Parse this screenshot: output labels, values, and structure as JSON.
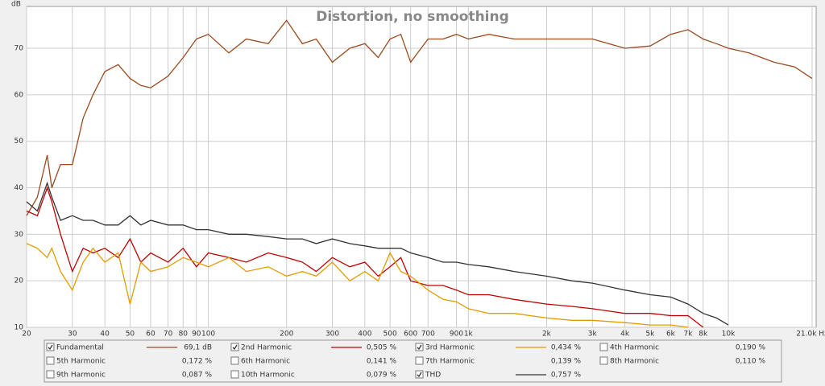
{
  "chart_data": {
    "type": "line",
    "title": "Distortion, no smoothing",
    "y_label": "dB",
    "log_x": true,
    "grid": true,
    "xlim": [
      20,
      21000
    ],
    "ylim": [
      10,
      79
    ],
    "xticks": [
      20,
      30,
      40,
      50,
      60,
      70,
      80,
      90,
      100,
      200,
      300,
      400,
      500,
      600,
      700,
      900,
      {
        "value": 1000,
        "label": "1k"
      },
      {
        "value": 2000,
        "label": "2k"
      },
      {
        "value": 3000,
        "label": "3k"
      },
      {
        "value": 4000,
        "label": "4k"
      },
      {
        "value": 5000,
        "label": "5k"
      },
      {
        "value": 6000,
        "label": "6k"
      },
      {
        "value": 7000,
        "label": "7k"
      },
      {
        "value": 8000,
        "label": "8k"
      },
      {
        "value": 10000,
        "label": "10k"
      },
      {
        "value": 21000,
        "label": "21.0k Hz"
      }
    ],
    "yticks": [
      10,
      20,
      30,
      40,
      50,
      60,
      70
    ],
    "x": [
      20,
      22,
      24,
      25,
      27,
      30,
      33,
      36,
      40,
      45,
      50,
      55,
      60,
      70,
      80,
      90,
      100,
      120,
      140,
      170,
      200,
      230,
      260,
      300,
      350,
      400,
      450,
      500,
      550,
      600,
      700,
      800,
      900,
      1000,
      1200,
      1500,
      2000,
      2500,
      3000,
      4000,
      5000,
      6000,
      7000,
      8000,
      9000,
      10000,
      12000,
      15000,
      18000,
      21000
    ],
    "series": [
      {
        "name": "Fundamental",
        "color": "#9a4a1c",
        "checked": true,
        "legend_value": "69,1 dB",
        "values": [
          34,
          38,
          47,
          40,
          45,
          45,
          55,
          60,
          65,
          66.5,
          63.5,
          62,
          61.5,
          64,
          68,
          72,
          73,
          69,
          72,
          71,
          76,
          71,
          72,
          67,
          70,
          71,
          68,
          72,
          73,
          67,
          72,
          72,
          73,
          72,
          73,
          72,
          72,
          72,
          72,
          70,
          70.5,
          73,
          74,
          72,
          71,
          70,
          69,
          67,
          66,
          63.5
        ]
      },
      {
        "name": "2nd Harmonic",
        "color": "#c00000",
        "checked": true,
        "legend_value": "0,505 %",
        "values": [
          35,
          34,
          40,
          37,
          30,
          22,
          27,
          26,
          27,
          25,
          29,
          24,
          26,
          24,
          27,
          23,
          26,
          25,
          24,
          26,
          25,
          24,
          22,
          25,
          23,
          24,
          21,
          23,
          25,
          20,
          19,
          19,
          18,
          17,
          17,
          16,
          15,
          14.5,
          14,
          13,
          13,
          12.5,
          12.5,
          10,
          null,
          null,
          null,
          null,
          null,
          null
        ]
      },
      {
        "name": "3rd Harmonic",
        "color": "#e39b00",
        "checked": true,
        "legend_value": "0,434 %",
        "values": [
          28,
          27,
          25,
          27,
          22,
          18,
          24,
          27,
          24,
          26,
          15,
          24,
          22,
          23,
          25,
          24,
          23,
          25,
          22,
          23,
          21,
          22,
          21,
          24,
          20,
          22,
          20,
          26,
          22,
          21,
          18,
          16,
          15.5,
          14,
          13,
          13,
          12,
          11.5,
          11.5,
          11,
          10.5,
          10.5,
          10,
          null,
          null,
          null,
          null,
          null,
          null,
          null
        ]
      },
      {
        "name": "4th Harmonic",
        "color": "#b3a800",
        "checked": false,
        "legend_value": "0,190 %"
      },
      {
        "name": "5th Harmonic",
        "color": "#92c83e",
        "checked": false,
        "legend_value": "0,172 %"
      },
      {
        "name": "6th Harmonic",
        "color": "#3a7fd5",
        "checked": false,
        "legend_value": "0,141 %"
      },
      {
        "name": "7th Harmonic",
        "color": "#d050d0",
        "checked": false,
        "legend_value": "0,139 %"
      },
      {
        "name": "8th Harmonic",
        "color": "#777777",
        "checked": false,
        "legend_value": "0,110 %"
      },
      {
        "name": "9th Harmonic",
        "color": "#00a8c8",
        "checked": false,
        "legend_value": "0,087 %"
      },
      {
        "name": "10th Harmonic",
        "color": "#806000",
        "checked": false,
        "legend_value": "0,079 %"
      },
      {
        "name": "THD",
        "color": "#333333",
        "checked": true,
        "legend_value": "0,757 %",
        "values": [
          37,
          35,
          41,
          38,
          33,
          34,
          33,
          33,
          32,
          32,
          34,
          32,
          33,
          32,
          32,
          31,
          31,
          30,
          30,
          29.5,
          29,
          29,
          28,
          29,
          28,
          27.5,
          27,
          27,
          27,
          26,
          25,
          24,
          24,
          23.5,
          23,
          22,
          21,
          20,
          19.5,
          18,
          17,
          16.5,
          15,
          13,
          12,
          10.5,
          null,
          null,
          null,
          null
        ]
      }
    ]
  }
}
